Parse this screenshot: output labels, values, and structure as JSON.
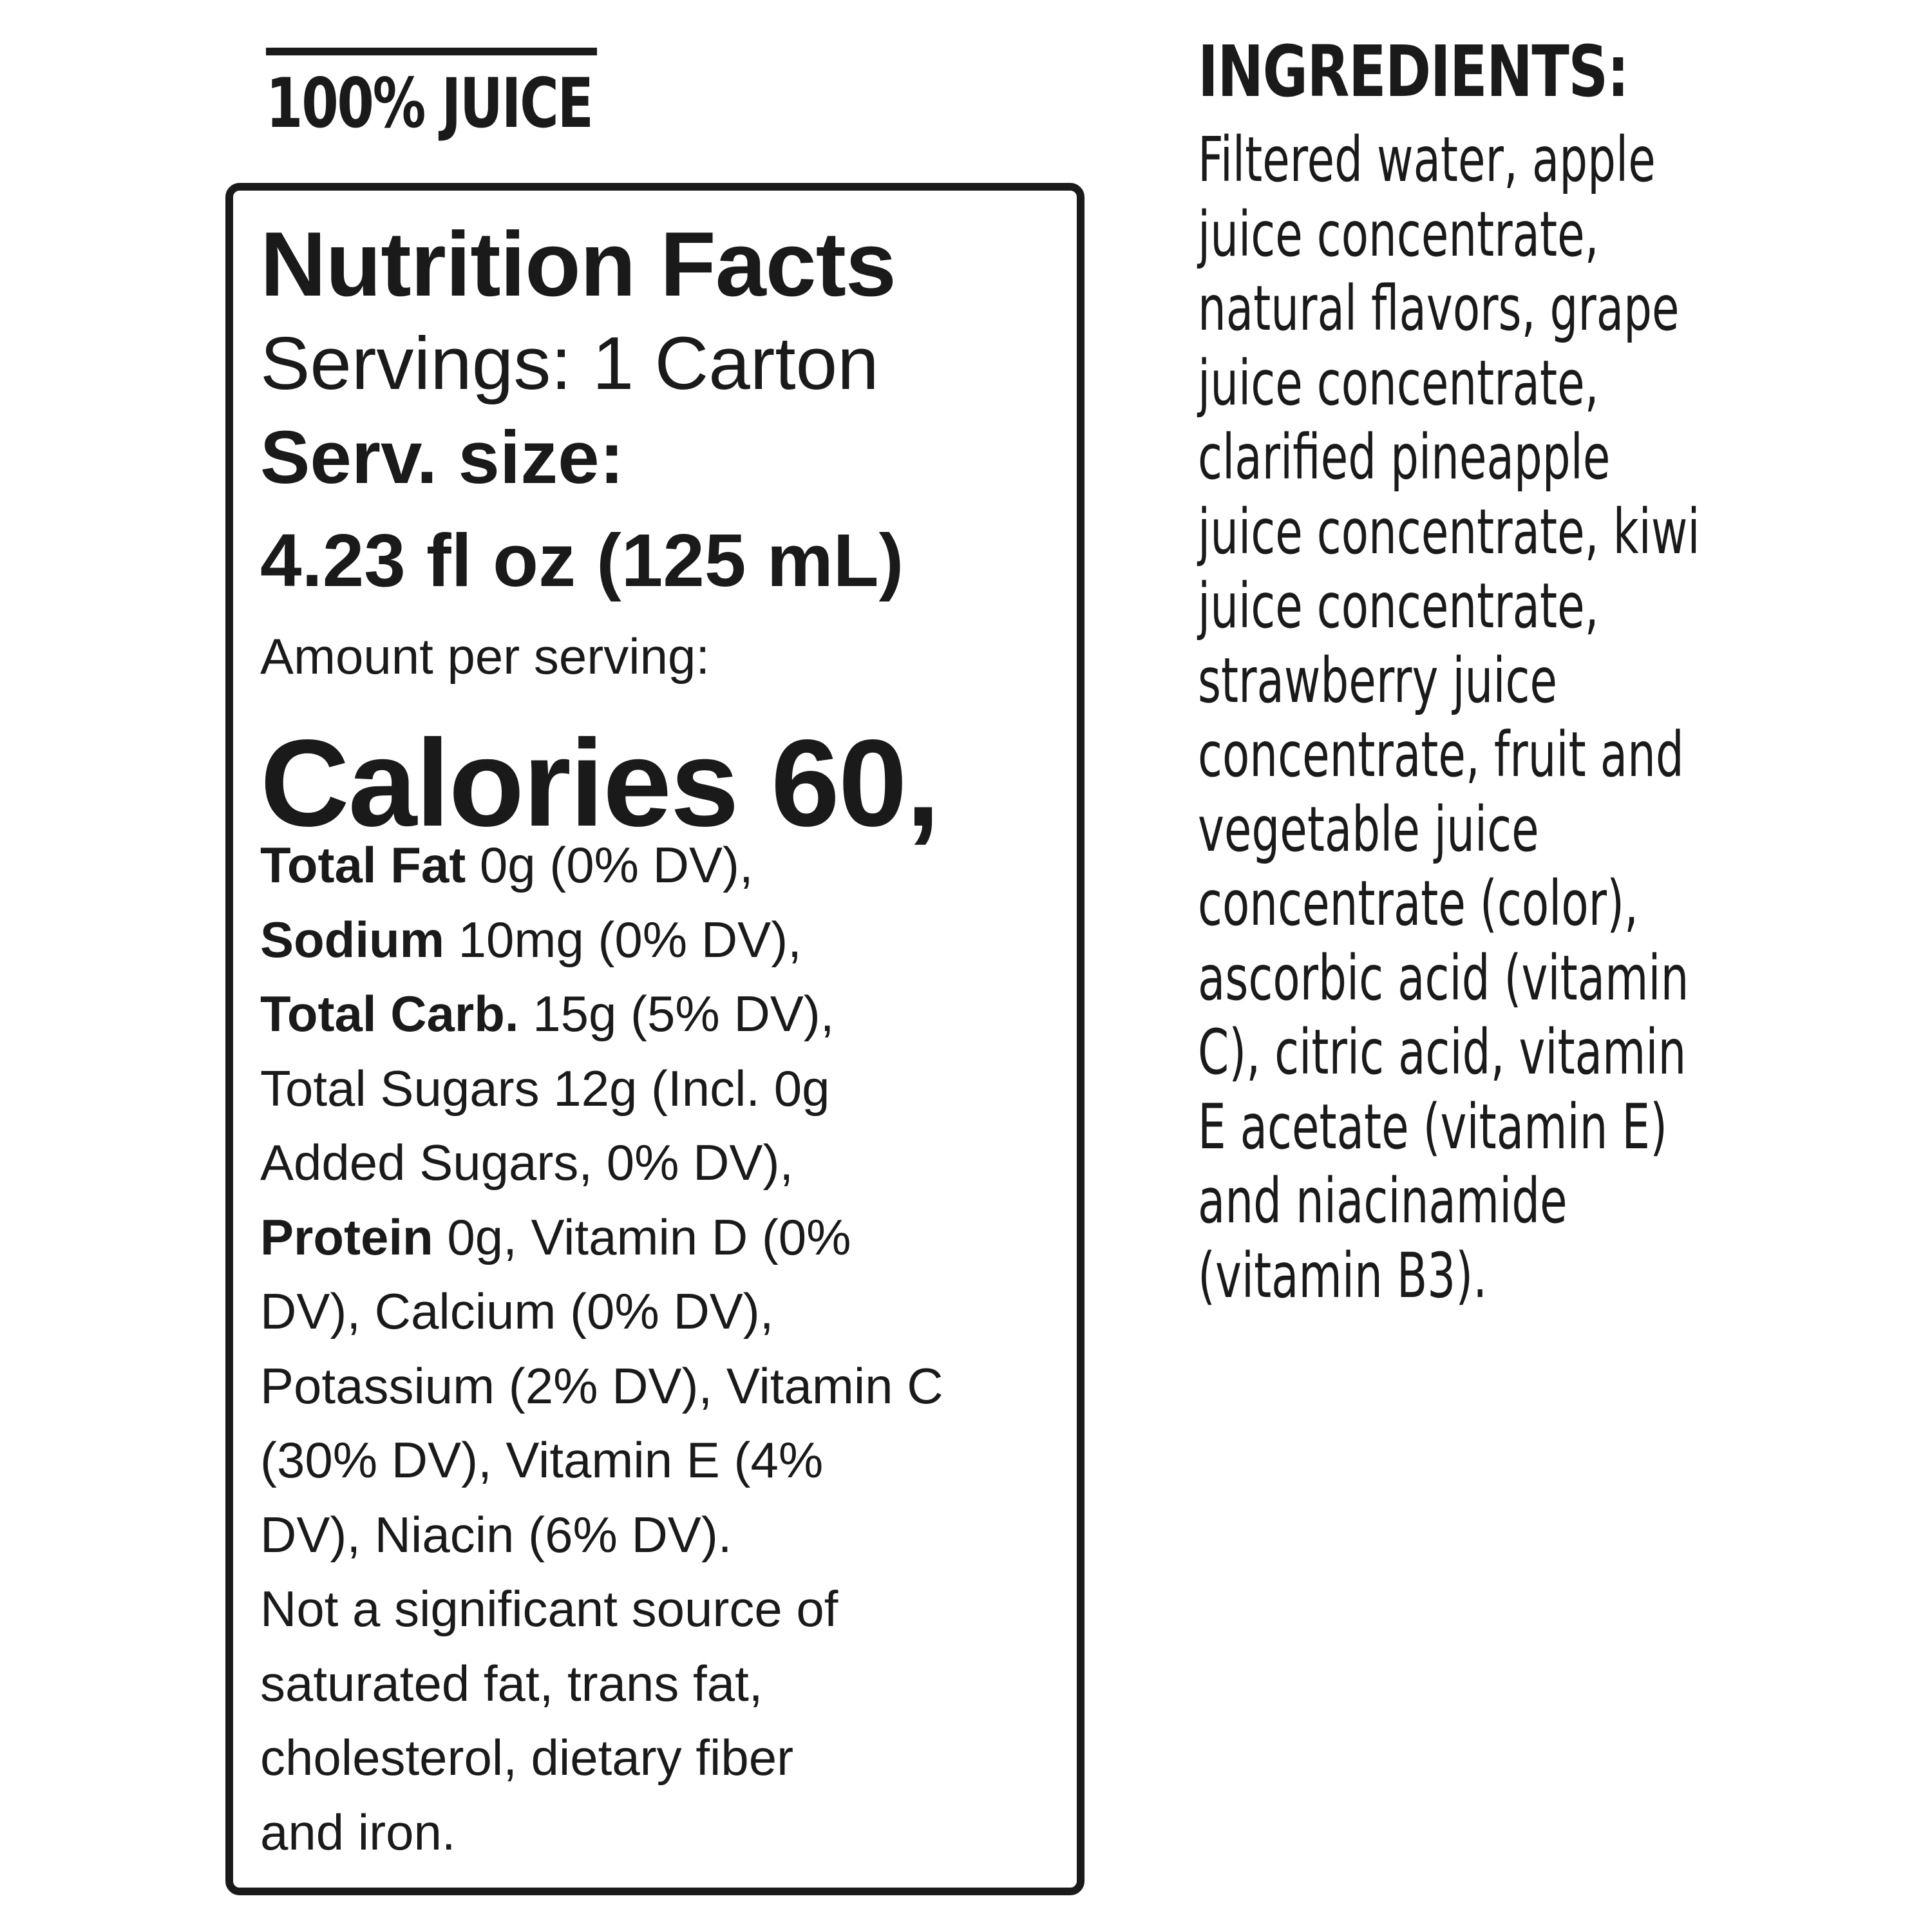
{
  "header": {
    "juice_label": "100% JUICE"
  },
  "nutrition": {
    "title": "Nutrition Facts",
    "servings": "Servings: 1 Carton",
    "serving_size_label": "Serv. size:",
    "serving_size_value": "4.23 fl oz (125 mL)",
    "amount_per_serving": "Amount per serving:",
    "calories": "Calories 60,",
    "lines": [
      {
        "bold": "Total Fat",
        "text": " 0g (0% DV),"
      },
      {
        "bold": "Sodium",
        "text": " 10mg (0% DV),"
      },
      {
        "bold": "Total Carb.",
        "text": " 15g (5% DV),"
      },
      {
        "bold": "",
        "text": "Total Sugars 12g (Incl. 0g"
      },
      {
        "bold": "",
        "text": "Added Sugars, 0% DV),"
      },
      {
        "bold": "Protein",
        "text": " 0g, Vitamin D (0%"
      },
      {
        "bold": "",
        "text": "DV), Calcium (0% DV),"
      },
      {
        "bold": "",
        "text": "Potassium (2% DV), Vitamin C"
      },
      {
        "bold": "",
        "text": "(30% DV), Vitamin E (4%"
      },
      {
        "bold": "",
        "text": "DV), Niacin (6% DV)."
      },
      {
        "bold": "",
        "text": "Not a significant source of"
      },
      {
        "bold": "",
        "text": "saturated fat, trans fat,"
      },
      {
        "bold": "",
        "text": "cholesterol, dietary fiber"
      },
      {
        "bold": "",
        "text": "and iron."
      }
    ]
  },
  "ingredients": {
    "title": "INGREDIENTS:",
    "lines": [
      "Filtered water, apple",
      "juice concentrate,",
      "natural flavors, grape",
      "juice concentrate,",
      "clarified pineapple",
      "juice concentrate, kiwi",
      "juice concentrate,",
      "strawberry juice",
      "concentrate, fruit and",
      "vegetable juice",
      "concentrate (color),",
      "ascorbic acid (vitamin",
      "C), citric acid, vitamin",
      "E acetate (vitamin E)",
      "and niacinamide",
      "(vitamin B3)."
    ]
  }
}
